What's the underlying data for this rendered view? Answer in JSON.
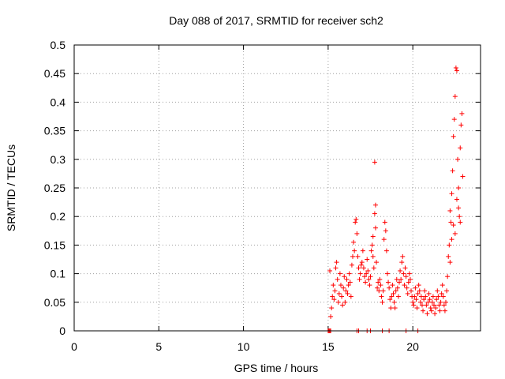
{
  "chart_data": {
    "type": "scatter",
    "title": "Day 088 of 2017, SRMTID for receiver sch2",
    "xlabel": "GPS time / hours",
    "ylabel": "SRMTID / TECUs",
    "xlim": [
      0,
      24
    ],
    "ylim": [
      0,
      0.5
    ],
    "xticks": [
      0,
      5,
      10,
      15,
      20
    ],
    "yticks": [
      0,
      0.05,
      0.1,
      0.15,
      0.2,
      0.25,
      0.3,
      0.35,
      0.4,
      0.45,
      0.5
    ],
    "xtick_labels": [
      "0",
      "5",
      "10",
      "15",
      "20"
    ],
    "ytick_labels": [
      "0",
      "0.05",
      "0.1",
      "0.15",
      "0.2",
      "0.25",
      "0.3",
      "0.35",
      "0.4",
      "0.45",
      "0.5"
    ],
    "grid": true,
    "marker": "+",
    "color": "#ff0000",
    "series": [
      {
        "name": "SRMTID",
        "points": [
          [
            15.0,
            0.0
          ],
          [
            15.05,
            0.0
          ],
          [
            15.1,
            0.0
          ],
          [
            15.15,
            0.0
          ],
          [
            16.7,
            0.0
          ],
          [
            16.8,
            0.0
          ],
          [
            17.3,
            0.0
          ],
          [
            17.5,
            0.0
          ],
          [
            18.2,
            0.0
          ],
          [
            18.6,
            0.0
          ],
          [
            19.6,
            0.0
          ],
          [
            20.3,
            0.0
          ],
          [
            15.1,
            0.105
          ],
          [
            15.15,
            0.025
          ],
          [
            15.2,
            0.04
          ],
          [
            15.25,
            0.06
          ],
          [
            15.3,
            0.08
          ],
          [
            15.35,
            0.055
          ],
          [
            15.4,
            0.07
          ],
          [
            15.45,
            0.11
          ],
          [
            15.5,
            0.12
          ],
          [
            15.55,
            0.09
          ],
          [
            15.6,
            0.05
          ],
          [
            15.65,
            0.065
          ],
          [
            15.7,
            0.1
          ],
          [
            15.75,
            0.08
          ],
          [
            15.8,
            0.06
          ],
          [
            15.85,
            0.045
          ],
          [
            15.9,
            0.075
          ],
          [
            15.95,
            0.095
          ],
          [
            16.0,
            0.05
          ],
          [
            16.05,
            0.07
          ],
          [
            16.1,
            0.09
          ],
          [
            16.15,
            0.065
          ],
          [
            16.2,
            0.08
          ],
          [
            16.25,
            0.1
          ],
          [
            16.3,
            0.085
          ],
          [
            16.35,
            0.06
          ],
          [
            16.4,
            0.115
          ],
          [
            16.45,
            0.13
          ],
          [
            16.5,
            0.155
          ],
          [
            16.55,
            0.14
          ],
          [
            16.6,
            0.19
          ],
          [
            16.65,
            0.195
          ],
          [
            16.7,
            0.17
          ],
          [
            16.75,
            0.13
          ],
          [
            16.8,
            0.11
          ],
          [
            16.85,
            0.09
          ],
          [
            16.9,
            0.1
          ],
          [
            16.95,
            0.115
          ],
          [
            17.0,
            0.12
          ],
          [
            17.05,
            0.14
          ],
          [
            17.1,
            0.11
          ],
          [
            17.15,
            0.095
          ],
          [
            17.2,
            0.085
          ],
          [
            17.25,
            0.1
          ],
          [
            17.3,
            0.125
          ],
          [
            17.35,
            0.105
          ],
          [
            17.4,
            0.09
          ],
          [
            17.45,
            0.08
          ],
          [
            17.5,
            0.095
          ],
          [
            17.55,
            0.14
          ],
          [
            17.6,
            0.15
          ],
          [
            17.65,
            0.13
          ],
          [
            17.7,
            0.11
          ],
          [
            17.75,
            0.205
          ],
          [
            17.8,
            0.22
          ],
          [
            17.85,
            0.12
          ],
          [
            17.9,
            0.075
          ],
          [
            17.95,
            0.085
          ],
          [
            17.75,
            0.295
          ],
          [
            17.65,
            0.165
          ],
          [
            17.8,
            0.18
          ],
          [
            18.0,
            0.07
          ],
          [
            18.05,
            0.09
          ],
          [
            18.1,
            0.08
          ],
          [
            18.15,
            0.06
          ],
          [
            18.2,
            0.05
          ],
          [
            18.25,
            0.07
          ],
          [
            18.3,
            0.16
          ],
          [
            18.35,
            0.19
          ],
          [
            18.4,
            0.175
          ],
          [
            18.45,
            0.14
          ],
          [
            18.5,
            0.1
          ],
          [
            18.55,
            0.085
          ],
          [
            18.6,
            0.075
          ],
          [
            18.65,
            0.055
          ],
          [
            18.7,
            0.04
          ],
          [
            18.75,
            0.06
          ],
          [
            18.8,
            0.08
          ],
          [
            18.85,
            0.065
          ],
          [
            18.9,
            0.05
          ],
          [
            18.95,
            0.04
          ],
          [
            19.0,
            0.07
          ],
          [
            19.05,
            0.09
          ],
          [
            19.1,
            0.075
          ],
          [
            19.15,
            0.06
          ],
          [
            19.2,
            0.085
          ],
          [
            19.25,
            0.105
          ],
          [
            19.3,
            0.09
          ],
          [
            19.35,
            0.12
          ],
          [
            19.4,
            0.13
          ],
          [
            19.45,
            0.1
          ],
          [
            19.5,
            0.08
          ],
          [
            19.55,
            0.11
          ],
          [
            19.6,
            0.095
          ],
          [
            19.65,
            0.075
          ],
          [
            19.7,
            0.065
          ],
          [
            19.75,
            0.085
          ],
          [
            19.8,
            0.1
          ],
          [
            19.85,
            0.09
          ],
          [
            19.9,
            0.07
          ],
          [
            19.95,
            0.06
          ],
          [
            20.0,
            0.05
          ],
          [
            20.05,
            0.045
          ],
          [
            20.1,
            0.06
          ],
          [
            20.15,
            0.075
          ],
          [
            20.2,
            0.055
          ],
          [
            20.25,
            0.04
          ],
          [
            20.3,
            0.065
          ],
          [
            20.35,
            0.08
          ],
          [
            20.4,
            0.07
          ],
          [
            20.45,
            0.05
          ],
          [
            20.5,
            0.06
          ],
          [
            20.55,
            0.045
          ],
          [
            20.6,
            0.035
          ],
          [
            20.65,
            0.055
          ],
          [
            20.7,
            0.07
          ],
          [
            20.75,
            0.06
          ],
          [
            20.8,
            0.045
          ],
          [
            20.85,
            0.03
          ],
          [
            20.9,
            0.05
          ],
          [
            20.95,
            0.065
          ],
          [
            21.0,
            0.055
          ],
          [
            21.05,
            0.04
          ],
          [
            21.1,
            0.035
          ],
          [
            21.15,
            0.05
          ],
          [
            21.2,
            0.06
          ],
          [
            21.25,
            0.045
          ],
          [
            21.3,
            0.03
          ],
          [
            21.35,
            0.04
          ],
          [
            21.4,
            0.055
          ],
          [
            21.45,
            0.07
          ],
          [
            21.5,
            0.06
          ],
          [
            21.55,
            0.045
          ],
          [
            21.6,
            0.035
          ],
          [
            21.65,
            0.05
          ],
          [
            21.7,
            0.065
          ],
          [
            21.75,
            0.08
          ],
          [
            21.8,
            0.06
          ],
          [
            21.85,
            0.045
          ],
          [
            21.9,
            0.035
          ],
          [
            21.95,
            0.05
          ],
          [
            22.0,
            0.07
          ],
          [
            22.05,
            0.095
          ],
          [
            22.1,
            0.13
          ],
          [
            22.15,
            0.15
          ],
          [
            22.2,
            0.21
          ],
          [
            22.25,
            0.19
          ],
          [
            22.3,
            0.24
          ],
          [
            22.35,
            0.28
          ],
          [
            22.4,
            0.34
          ],
          [
            22.45,
            0.37
          ],
          [
            22.5,
            0.41
          ],
          [
            22.55,
            0.46
          ],
          [
            22.6,
            0.455
          ],
          [
            22.65,
            0.3
          ],
          [
            22.7,
            0.25
          ],
          [
            22.75,
            0.2
          ],
          [
            22.8,
            0.32
          ],
          [
            22.85,
            0.36
          ],
          [
            22.9,
            0.38
          ],
          [
            22.95,
            0.27
          ],
          [
            22.4,
            0.185
          ],
          [
            22.6,
            0.23
          ],
          [
            22.7,
            0.215
          ],
          [
            22.8,
            0.19
          ],
          [
            22.3,
            0.16
          ],
          [
            22.5,
            0.17
          ],
          [
            22.2,
            0.12
          ]
        ]
      }
    ]
  }
}
